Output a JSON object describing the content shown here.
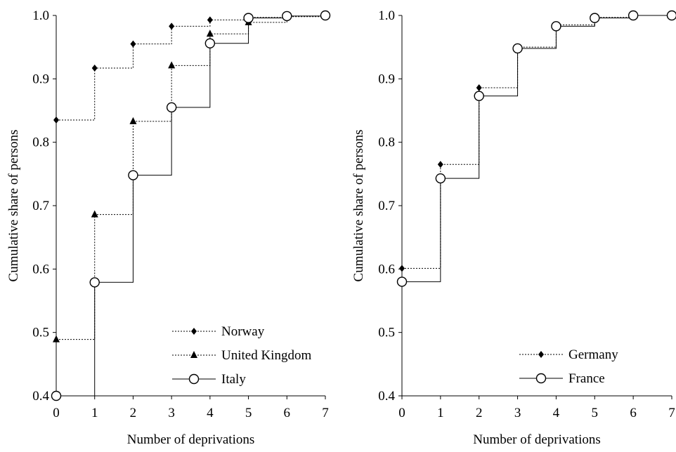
{
  "chart_data": [
    {
      "type": "line",
      "step": "post",
      "xlabel": "Number of deprivations",
      "ylabel": "Cumulative share of persons",
      "xlim": [
        0,
        7
      ],
      "ylim": [
        0.4,
        1.0
      ],
      "xticks": [
        "0",
        "1",
        "2",
        "3",
        "4",
        "5",
        "6",
        "7"
      ],
      "yticks": [
        "0.4",
        "0.5",
        "0.6",
        "0.7",
        "0.8",
        "0.9",
        "1.0"
      ],
      "legend_position": "bottom-right",
      "series": [
        {
          "name": "Norway",
          "marker": "diamond",
          "line": "dotted",
          "x": [
            0,
            1,
            2,
            3,
            4,
            5,
            6,
            7
          ],
          "y": [
            0.835,
            0.917,
            0.955,
            0.983,
            0.993,
            0.997,
            0.999,
            1.0
          ]
        },
        {
          "name": "United Kingdom",
          "marker": "triangle",
          "line": "dotted",
          "x": [
            0,
            1,
            2,
            3,
            4,
            5,
            6,
            7
          ],
          "y": [
            0.489,
            0.686,
            0.833,
            0.921,
            0.971,
            0.989,
            0.998,
            1.0
          ]
        },
        {
          "name": "Italy",
          "marker": "circle",
          "line": "solid",
          "x": [
            0,
            1,
            2,
            3,
            4,
            5,
            6,
            7
          ],
          "y": [
            0.4,
            0.579,
            0.748,
            0.855,
            0.956,
            0.996,
            0.999,
            1.0
          ]
        }
      ]
    },
    {
      "type": "line",
      "step": "post",
      "xlabel": "Number of deprivations",
      "ylabel": "Cumulative share of persons",
      "xlim": [
        0,
        7
      ],
      "ylim": [
        0.4,
        1.0
      ],
      "xticks": [
        "0",
        "1",
        "2",
        "3",
        "4",
        "5",
        "6",
        "7"
      ],
      "yticks": [
        "0.4",
        "0.5",
        "0.6",
        "0.7",
        "0.8",
        "0.9",
        "1.0"
      ],
      "legend_position": "bottom-right",
      "series": [
        {
          "name": "Germany",
          "marker": "diamond",
          "line": "dotted",
          "x": [
            0,
            1,
            2,
            3,
            4,
            5,
            6,
            7
          ],
          "y": [
            0.601,
            0.765,
            0.886,
            0.95,
            0.985,
            0.997,
            1.0,
            1.0
          ]
        },
        {
          "name": "France",
          "marker": "circle",
          "line": "solid",
          "x": [
            0,
            1,
            2,
            3,
            4,
            5,
            6,
            7
          ],
          "y": [
            0.58,
            0.743,
            0.873,
            0.948,
            0.983,
            0.996,
            1.0,
            1.0
          ]
        }
      ]
    }
  ]
}
